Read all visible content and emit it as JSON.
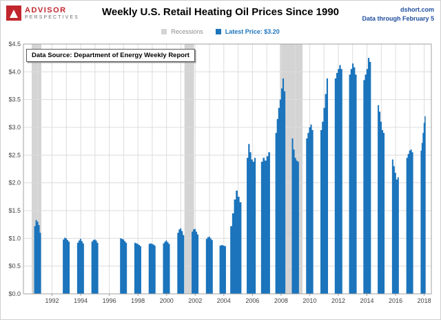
{
  "header": {
    "logo_line1": "ADVISOR",
    "logo_line2": "PERSPECTIVES",
    "title": "Weekly U.S. Retail Heating Oil Prices Since 1990",
    "source_site": "dshort.com",
    "data_through": "Data through February 5"
  },
  "legend": {
    "recessions_label": "Recessions",
    "latest_price_label": "Latest Price: $3.20"
  },
  "annotation": "Data Source: Department of Energy Weekly Report",
  "colors": {
    "bar": "#1b74bc",
    "recession_band": "#d4d4d4",
    "grid": "#dcdcdc",
    "plot_border": "#a0a0a0",
    "axis_text": "#404040",
    "blue_text": "#1f4e9e",
    "logo_red": "#c1272d",
    "logo_gray": "#6d6e71",
    "legend_gray": "#8c8c8c"
  },
  "chart_data": {
    "type": "area",
    "title": "Weekly U.S. Retail Heating Oil Prices Since 1990",
    "series_name": "U.S. Weekly Retail Heating Oil Price ($/gal)",
    "latest_price": 3.2,
    "x_range": [
      1990,
      2018.5
    ],
    "y_range": [
      0,
      4.5
    ],
    "y_ticks": [
      0,
      0.5,
      1.0,
      1.5,
      2.0,
      2.5,
      3.0,
      3.5,
      4.0,
      4.5
    ],
    "y_tick_labels": [
      "$0.0",
      "$0.5",
      "$1.0",
      "$1.5",
      "$2.0",
      "$2.5",
      "$3.0",
      "$3.5",
      "$4.0",
      "$4.5"
    ],
    "x_ticks": [
      1992,
      1994,
      1996,
      1998,
      2000,
      2002,
      2004,
      2006,
      2008,
      2010,
      2012,
      2014,
      2016,
      2018
    ],
    "grid": true,
    "legend_position": "top",
    "recessions": [
      [
        1990.58,
        1991.25
      ],
      [
        2001.25,
        2001.92
      ],
      [
        2007.92,
        2009.5
      ]
    ],
    "seasons": [
      {
        "start": 1990.75,
        "end": 1991.23,
        "values": [
          1.22,
          1.33,
          1.3,
          1.24,
          1.1
        ]
      },
      {
        "start": 1992.75,
        "end": 1993.23,
        "values": [
          0.98,
          1.01,
          1.0,
          0.97,
          0.94
        ]
      },
      {
        "start": 1993.75,
        "end": 1994.23,
        "values": [
          0.92,
          0.96,
          0.99,
          0.95,
          0.91
        ]
      },
      {
        "start": 1994.75,
        "end": 1995.23,
        "values": [
          0.94,
          0.97,
          0.98,
          0.96,
          0.92
        ]
      },
      {
        "start": 1996.75,
        "end": 1997.23,
        "values": [
          1.0,
          0.99,
          0.98,
          0.95,
          0.92
        ]
      },
      {
        "start": 1997.75,
        "end": 1998.23,
        "values": [
          0.92,
          0.91,
          0.9,
          0.88,
          0.86
        ]
      },
      {
        "start": 1998.75,
        "end": 1999.23,
        "values": [
          0.9,
          0.91,
          0.9,
          0.89,
          0.87
        ]
      },
      {
        "start": 1999.75,
        "end": 2000.23,
        "values": [
          0.91,
          0.94,
          0.96,
          0.93,
          0.9
        ]
      },
      {
        "start": 2000.75,
        "end": 2001.23,
        "values": [
          1.1,
          1.16,
          1.18,
          1.13,
          1.06
        ]
      },
      {
        "start": 2001.75,
        "end": 2002.23,
        "values": [
          1.12,
          1.16,
          1.17,
          1.12,
          1.07
        ]
      },
      {
        "start": 2002.75,
        "end": 2003.23,
        "values": [
          0.99,
          1.02,
          1.03,
          1.0,
          0.97
        ]
      },
      {
        "start": 2003.7,
        "end": 2004.15,
        "values": [
          0.87,
          0.88,
          0.87,
          0.86
        ]
      },
      {
        "start": 2004.45,
        "end": 2005.23,
        "values": [
          1.22,
          1.45,
          1.7,
          1.86,
          1.75,
          1.65
        ]
      },
      {
        "start": 2005.6,
        "end": 2006.23,
        "values": [
          2.45,
          2.7,
          2.55,
          2.42,
          2.38,
          2.45
        ]
      },
      {
        "start": 2006.6,
        "end": 2007.23,
        "values": [
          2.38,
          2.45,
          2.4,
          2.48,
          2.55
        ]
      },
      {
        "start": 2007.6,
        "end": 2008.3,
        "values": [
          2.9,
          3.15,
          3.35,
          3.5,
          3.7,
          3.88,
          3.65
        ]
      },
      {
        "start": 2008.75,
        "end": 2009.25,
        "values": [
          2.8,
          2.6,
          2.45,
          2.4,
          2.38
        ]
      },
      {
        "start": 2009.75,
        "end": 2010.25,
        "values": [
          2.8,
          2.9,
          3.0,
          3.05,
          2.95
        ]
      },
      {
        "start": 2010.75,
        "end": 2011.28,
        "values": [
          2.95,
          3.1,
          3.35,
          3.6,
          3.88
        ]
      },
      {
        "start": 2011.75,
        "end": 2012.28,
        "values": [
          3.88,
          3.98,
          4.05,
          4.12,
          4.05
        ]
      },
      {
        "start": 2012.75,
        "end": 2013.28,
        "values": [
          3.95,
          4.05,
          4.15,
          4.08,
          3.95
        ]
      },
      {
        "start": 2013.75,
        "end": 2014.28,
        "values": [
          3.85,
          3.95,
          4.05,
          4.25,
          4.18
        ]
      },
      {
        "start": 2014.75,
        "end": 2015.23,
        "values": [
          3.4,
          3.28,
          3.1,
          2.95,
          2.9
        ]
      },
      {
        "start": 2015.75,
        "end": 2016.23,
        "values": [
          2.42,
          2.3,
          2.18,
          2.06,
          2.1
        ]
      },
      {
        "start": 2016.75,
        "end": 2017.23,
        "values": [
          2.45,
          2.52,
          2.58,
          2.6,
          2.55
        ]
      },
      {
        "start": 2017.75,
        "end": 2018.1,
        "values": [
          2.58,
          2.72,
          2.9,
          3.08,
          3.2
        ]
      }
    ]
  }
}
